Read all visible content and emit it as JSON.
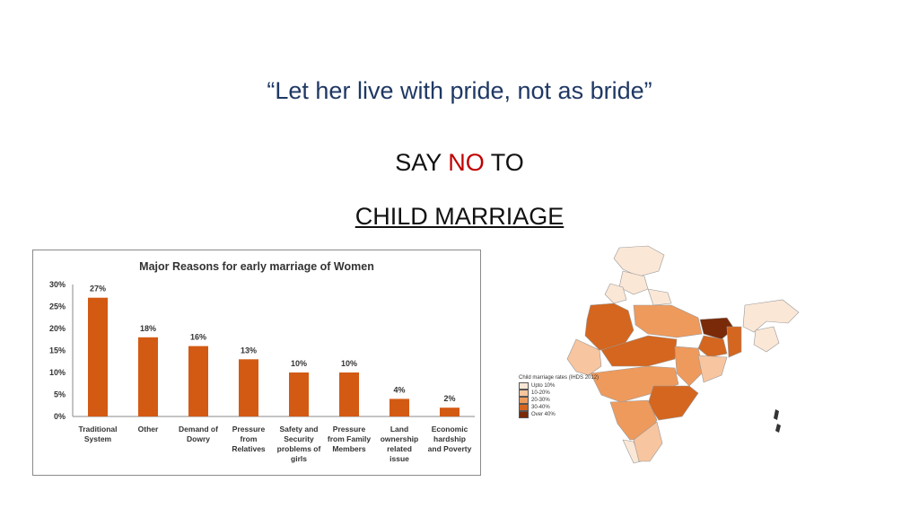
{
  "slide": {
    "quote": "“Let her live with pride, not as bride”",
    "say_prefix": "SAY",
    "say_no": "NO",
    "say_suffix": "TO",
    "child_marriage": "CHILD MARRIAGE"
  },
  "colors": {
    "quote": "#1f3864",
    "no": "#c00000",
    "bar": "#d35a13"
  },
  "chart_data": {
    "type": "bar",
    "title": "Major Reasons for early marriage of Women",
    "categories": [
      [
        "Traditional",
        "System"
      ],
      [
        "Other"
      ],
      [
        "Demand of",
        "Dowry"
      ],
      [
        "Pressure",
        "from",
        "Relatives"
      ],
      [
        "Safety and",
        "Security",
        "problems of",
        "girls"
      ],
      [
        "Pressure",
        "from Family",
        "Members"
      ],
      [
        "Land",
        "ownership",
        "related",
        "issue"
      ],
      [
        "Economic",
        "hardship",
        "and Poverty"
      ]
    ],
    "values": [
      27,
      18,
      16,
      13,
      10,
      10,
      4,
      2
    ],
    "value_labels": [
      "27%",
      "18%",
      "16%",
      "13%",
      "10%",
      "10%",
      "4%",
      "2%"
    ],
    "ylim": [
      0,
      30
    ],
    "yticks": [
      "0%",
      "5%",
      "10%",
      "15%",
      "20%",
      "25%",
      "30%"
    ],
    "grid": false
  },
  "map": {
    "legend_title": "Child marriage rates (IHDS 2012)",
    "legend": [
      {
        "label": "Upto 10%",
        "color": "#fbe7d6"
      },
      {
        "label": "10-20%",
        "color": "#f7c59f"
      },
      {
        "label": "20-30%",
        "color": "#ee9a5c"
      },
      {
        "label": "30-40%",
        "color": "#d4661f"
      },
      {
        "label": "Over 40%",
        "color": "#7a2a08"
      }
    ]
  }
}
